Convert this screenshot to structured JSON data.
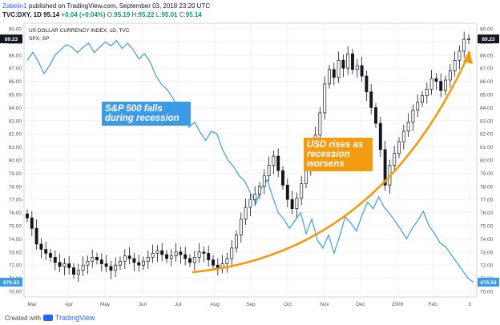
{
  "header": {
    "author": "Zabelin1",
    "published": " published on TradingView.com, September 03, 2018 23:20 UTC",
    "symbol": "TVC:DXY, 1D",
    "last": "95.14",
    "change": "+0.04 (+0.04%)",
    "open_label": "O:",
    "open": "95.19",
    "high_label": "H:",
    "high": "95.22",
    "low_label": "L:",
    "low": "95.01",
    "close_label": "C:",
    "close": "95.14"
  },
  "footer": {
    "created_with": "Created with",
    "brand": "TradingView"
  },
  "chart_data": {
    "type": "line",
    "legend": [
      "US DOLLAR CURRENCY INDEX, 1D, TVC",
      "SPX, SP"
    ],
    "x_ticks": [
      "Mar",
      "Apr",
      "May",
      "Jun",
      "Jul",
      "Aug",
      "Sep",
      "Oct",
      "Nov",
      "Dec",
      "2009",
      "Feb",
      "3"
    ],
    "y_ticks": [
      "70.00",
      "71.00",
      "72.00",
      "73.00",
      "74.00",
      "75.00",
      "76.00",
      "77.00",
      "78.00",
      "79.00",
      "80.00",
      "81.00",
      "82.00",
      "83.00",
      "84.00",
      "85.00",
      "86.00",
      "87.00",
      "88.00",
      "89.00",
      "90.00"
    ],
    "y_range": [
      70,
      90
    ],
    "series": [
      {
        "name": "US DOLLAR CURRENCY INDEX, 1D, TVC",
        "style": "candlestick",
        "color": "#131722",
        "last_label": "89.23",
        "values": [
          75.6,
          74.8,
          73.6,
          73.2,
          72.9,
          72.6,
          72.2,
          71.9,
          72.1,
          71.8,
          71.3,
          71.6,
          72.0,
          72.3,
          72.6,
          72.4,
          72.1,
          71.9,
          71.6,
          72.0,
          72.3,
          72.7,
          72.5,
          72.2,
          72.0,
          72.3,
          72.6,
          72.9,
          73.1,
          72.8,
          72.5,
          72.7,
          73.0,
          72.8,
          72.5,
          72.2,
          72.6,
          73.0,
          72.9,
          72.4,
          72.0,
          71.8,
          72.1,
          72.5,
          73.3,
          74.3,
          75.5,
          76.4,
          77.0,
          77.4,
          78.0,
          78.8,
          79.6,
          80.3,
          79.2,
          78.1,
          77.0,
          76.3,
          77.1,
          78.2,
          79.4,
          80.6,
          81.9,
          83.6,
          85.8,
          86.9,
          86.3,
          87.6,
          87.0,
          88.1,
          86.9,
          87.2,
          86.4,
          85.2,
          84.0,
          82.8,
          80.8,
          78.1,
          79.6,
          80.5,
          81.4,
          82.2,
          82.9,
          83.8,
          84.4,
          84.9,
          85.4,
          86.2,
          86.0,
          85.3,
          86.1,
          86.8,
          87.6,
          88.3,
          89.2,
          89.23
        ]
      },
      {
        "name": "SPX, SP",
        "style": "line",
        "color": "#3d9ae5",
        "last_label": "676.53",
        "values": [
          87.6,
          88.2,
          87.5,
          86.6,
          87.2,
          88.0,
          88.4,
          88.8,
          88.6,
          88.2,
          88.6,
          88.9,
          88.2,
          88.6,
          89.0,
          88.7,
          89.1,
          88.5,
          88.9,
          88.4,
          87.7,
          88.1,
          87.5,
          86.5,
          85.8,
          85.4,
          84.8,
          84.0,
          83.2,
          82.5,
          82.9,
          82.1,
          81.5,
          82.2,
          82.0,
          80.8,
          80.0,
          79.5,
          78.8,
          78.4,
          77.5,
          76.7,
          77.9,
          78.5,
          77.2,
          76.0,
          75.5,
          74.8,
          75.4,
          76.0,
          74.4,
          75.5,
          73.9,
          73.3,
          74.3,
          72.9,
          74.2,
          75.7,
          75.2,
          74.6,
          75.8,
          76.8,
          76.3,
          77.2,
          76.4,
          75.9,
          75.3,
          74.7,
          74.0,
          74.8,
          75.4,
          76.1,
          75.0,
          74.4,
          73.7,
          73.4,
          72.8,
          72.2,
          71.6,
          71.0,
          70.7
        ]
      }
    ],
    "annotations": [
      {
        "text": [
          "S&P 500 falls",
          "during recession"
        ],
        "bg": "#3d9ae5",
        "color": "#ffffff"
      },
      {
        "text": [
          "USD rises as",
          "recession",
          "worsens"
        ],
        "bg": "#f39c12",
        "color": "#ffffff"
      }
    ],
    "grid": true,
    "axis_position": "right"
  }
}
